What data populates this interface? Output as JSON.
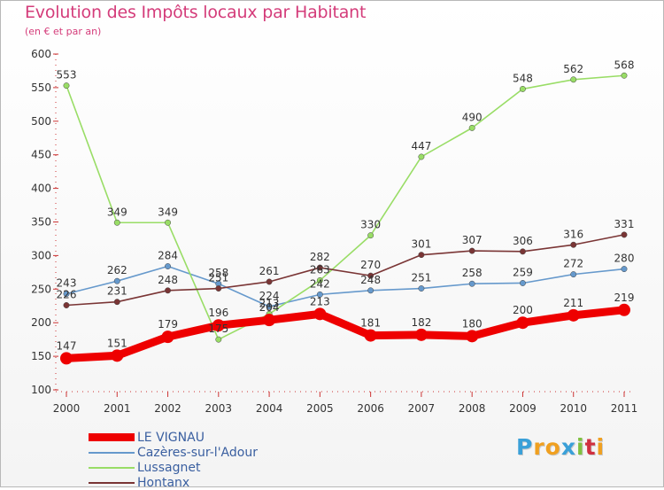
{
  "header": {
    "title": "Evolution des Impôts locaux par Habitant",
    "subtitle": "(en € et par an)"
  },
  "logo": {
    "letters": [
      "P",
      "r",
      "o",
      "x",
      "i",
      "t",
      "i"
    ],
    "colors": [
      "#3aa0d8",
      "#f0a020",
      "#f0a020",
      "#3aa0d8",
      "#80c040",
      "#d03040",
      "#f0a020"
    ]
  },
  "chart_data": {
    "type": "line",
    "x": [
      "2000",
      "2001",
      "2002",
      "2003",
      "2004",
      "2005",
      "2006",
      "2007",
      "2008",
      "2009",
      "2010",
      "2011"
    ],
    "ylim": [
      100,
      600
    ],
    "yticks": [
      100,
      150,
      200,
      250,
      300,
      350,
      400,
      450,
      500,
      550,
      600
    ],
    "grid": false,
    "legend_position": "bottom-left",
    "series": [
      {
        "name": "LE VIGNAU",
        "color": "#ee0000",
        "emphasis": true,
        "values": [
          147,
          151,
          179,
          196,
          204,
          213,
          181,
          182,
          180,
          200,
          211,
          219
        ],
        "labels": [
          "147",
          "151",
          "179",
          "196",
          "204",
          "213",
          "181",
          "182",
          "180",
          "200",
          "211",
          "219"
        ]
      },
      {
        "name": "Cazères-sur-l'Adour",
        "color": "#6699cc",
        "values": [
          243,
          262,
          284,
          258,
          224,
          242,
          248,
          251,
          258,
          259,
          272,
          280
        ],
        "labels": [
          "243",
          "262",
          "284",
          "258",
          "224",
          "242",
          "248",
          "251",
          "258",
          "259",
          "272",
          "280"
        ]
      },
      {
        "name": "Lussagnet",
        "color": "#99dd66",
        "values": [
          553,
          349,
          349,
          175,
          213,
          263,
          330,
          447,
          490,
          548,
          562,
          568
        ],
        "labels": [
          "553",
          "349",
          "349",
          "175",
          "213",
          "263",
          "330",
          "447",
          "490",
          "548",
          "562",
          "568"
        ]
      },
      {
        "name": "Hontanx",
        "color": "#7a3535",
        "values": [
          226,
          231,
          248,
          251,
          261,
          282,
          270,
          301,
          307,
          306,
          316,
          331
        ],
        "labels": [
          "226",
          "231",
          "248",
          "251",
          "261",
          "282",
          "270",
          "301",
          "307",
          "306",
          "316",
          "331"
        ]
      }
    ]
  }
}
